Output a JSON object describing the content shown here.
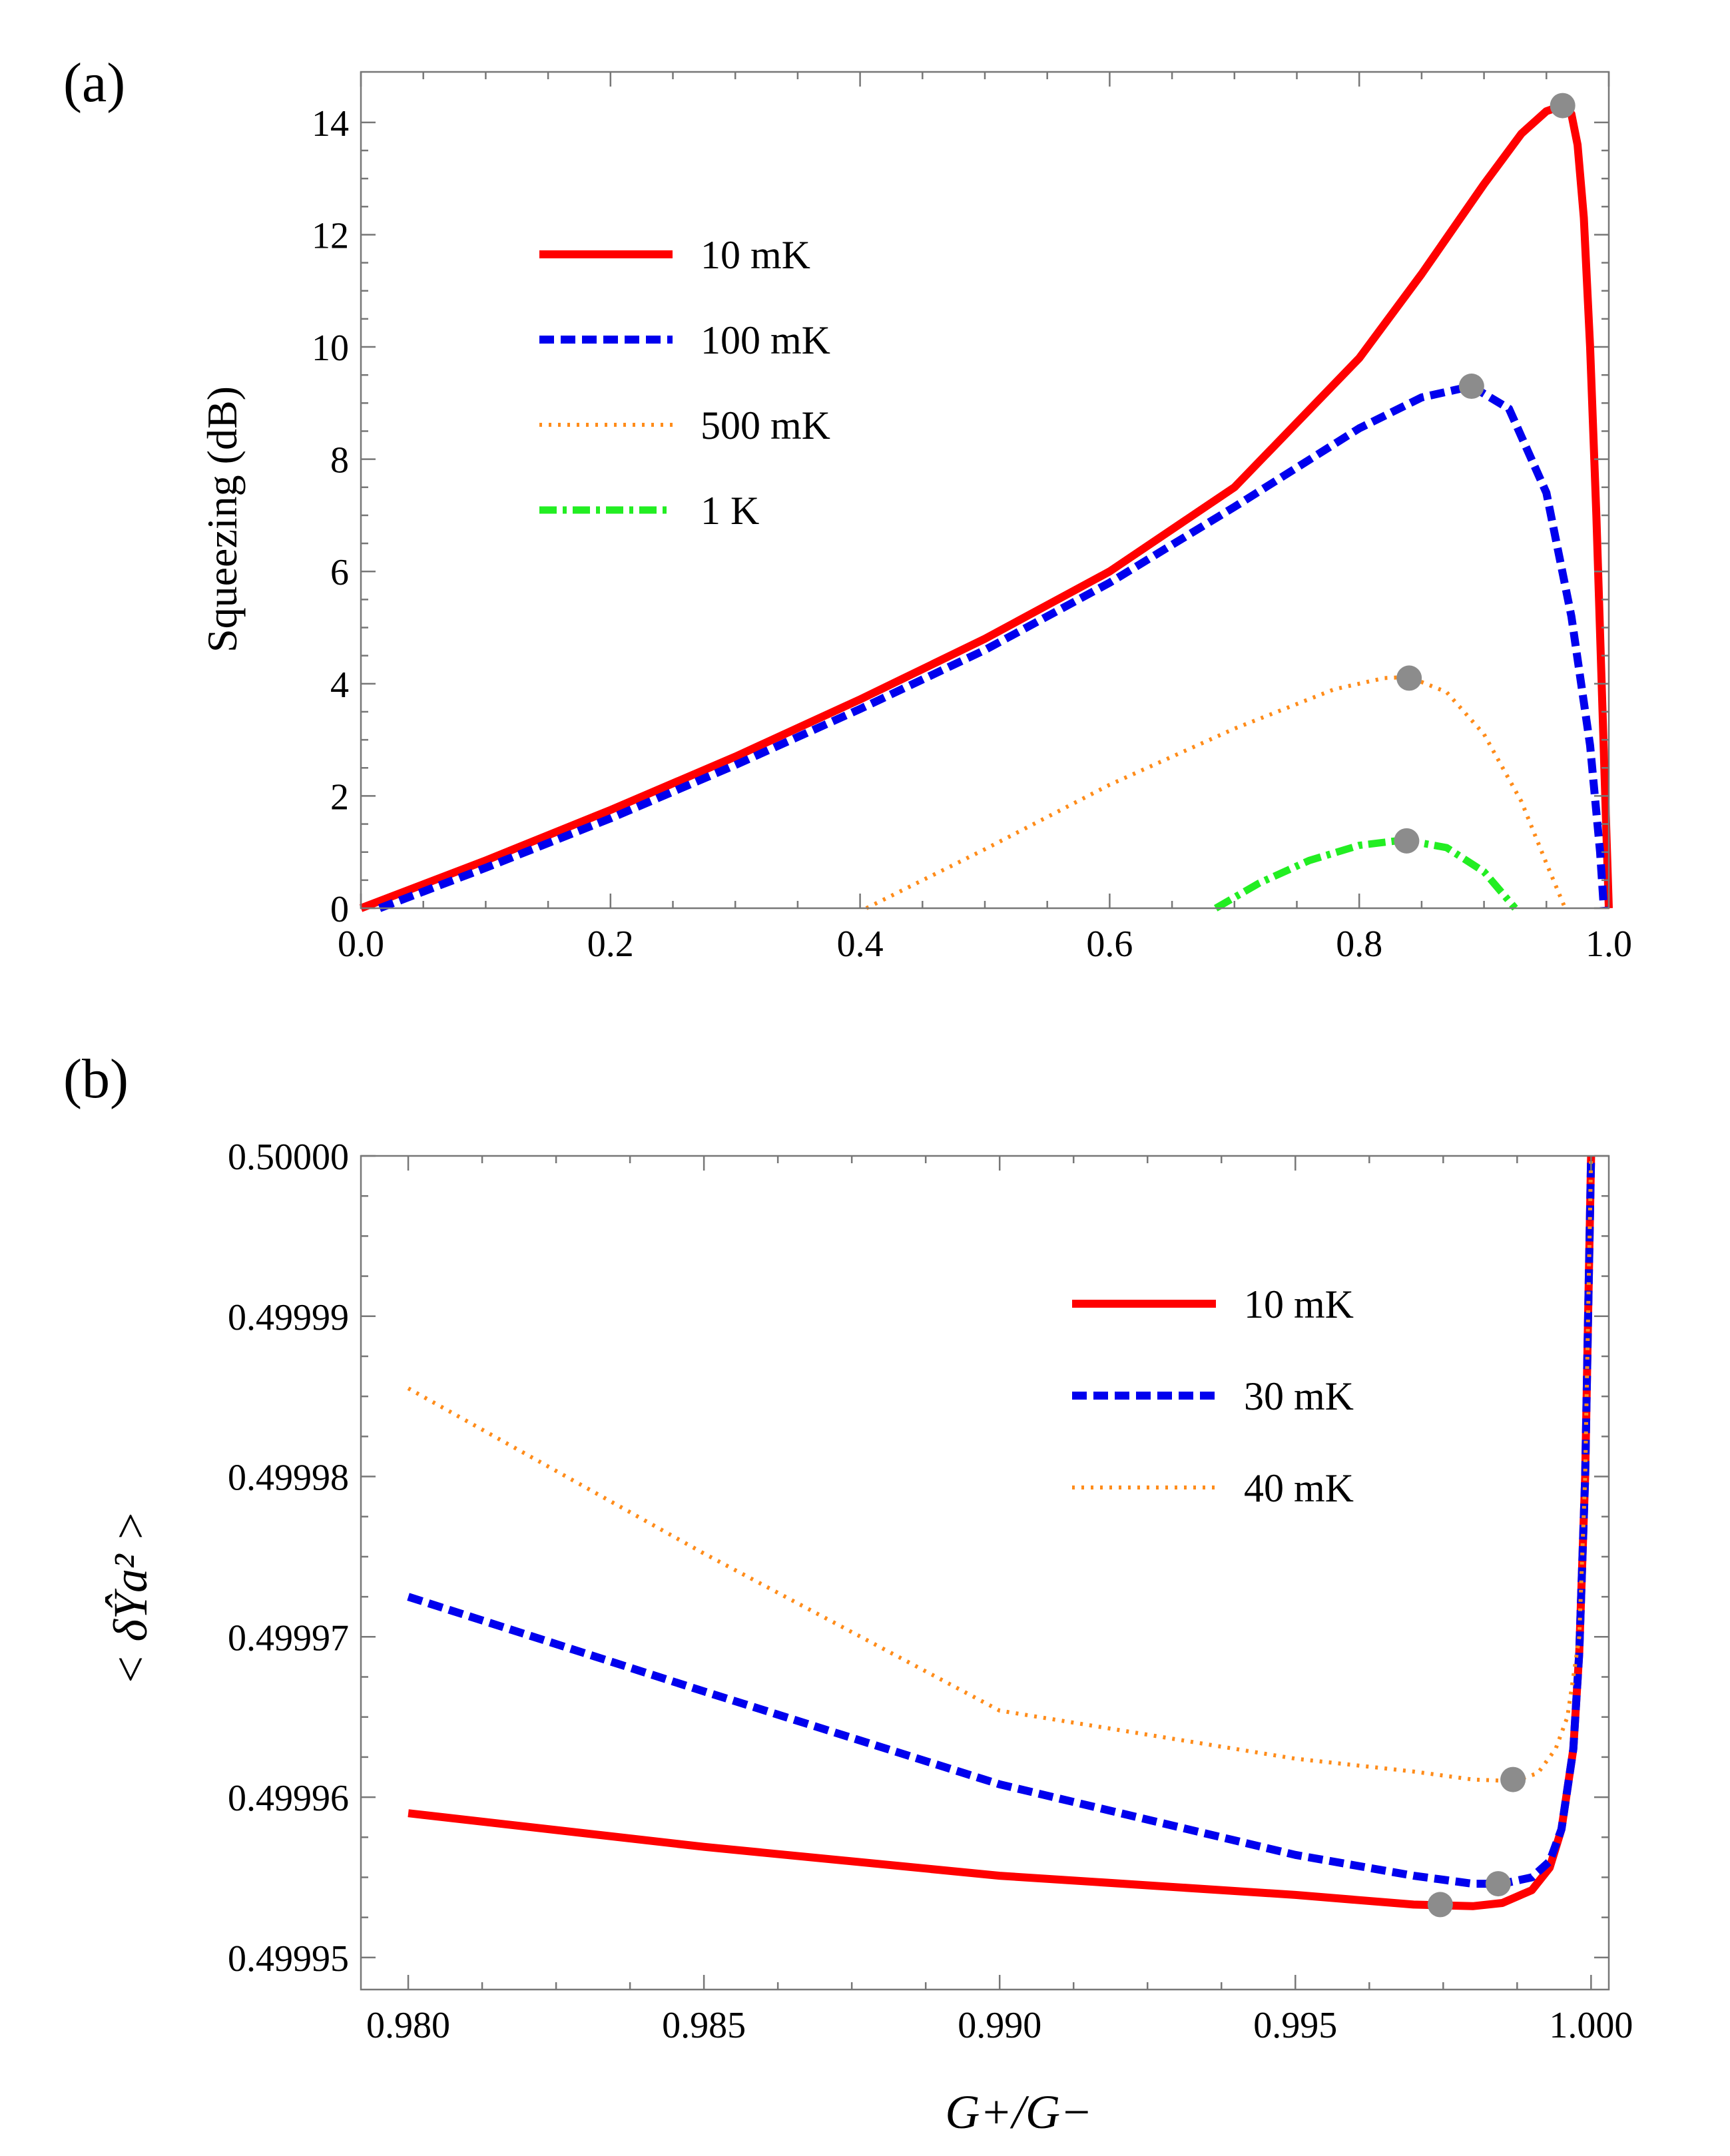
{
  "colors": {
    "red": "#ff0000",
    "blue": "#0000ee",
    "orange": "#ff8c1a",
    "green": "#22ee22",
    "marker": "#8c8c8c"
  },
  "chart_data": [
    {
      "id": "a",
      "panel_label": "(a)",
      "type": "line",
      "title": "",
      "xlabel": "",
      "ylabel": "Squeezing  (dB)",
      "xlim": [
        0.0,
        1.0
      ],
      "ylim": [
        0,
        14.9
      ],
      "xticks": [
        0.0,
        0.2,
        0.4,
        0.6,
        0.8,
        1.0
      ],
      "xtick_labels": [
        "0.0",
        "0.2",
        "0.4",
        "0.6",
        "0.8",
        "1.0"
      ],
      "yticks": [
        0,
        2,
        4,
        6,
        8,
        10,
        12,
        14
      ],
      "ytick_labels": [
        "0",
        "2",
        "4",
        "6",
        "8",
        "10",
        "12",
        "14"
      ],
      "legend_position": "upper-left",
      "series": [
        {
          "name": "10 mK",
          "color": "red",
          "dash": "solid",
          "x": [
            0.0,
            0.1,
            0.2,
            0.3,
            0.4,
            0.5,
            0.6,
            0.7,
            0.8,
            0.85,
            0.9,
            0.93,
            0.95,
            0.963,
            0.97,
            0.975,
            0.98,
            0.985,
            0.99,
            0.995,
            1.0
          ],
          "y": [
            0.0,
            0.85,
            1.75,
            2.7,
            3.72,
            4.8,
            6.0,
            7.5,
            9.8,
            11.3,
            12.9,
            13.8,
            14.2,
            14.3,
            14.15,
            13.6,
            12.3,
            10.0,
            7.0,
            3.5,
            0.0
          ],
          "peak": [
            0.963,
            14.3
          ]
        },
        {
          "name": "100 mK",
          "color": "blue",
          "dash": "dashed",
          "x": [
            0.015,
            0.1,
            0.2,
            0.3,
            0.4,
            0.5,
            0.6,
            0.7,
            0.8,
            0.85,
            0.89,
            0.92,
            0.95,
            0.97,
            0.985,
            0.993,
            0.996
          ],
          "y": [
            0.0,
            0.72,
            1.6,
            2.55,
            3.55,
            4.6,
            5.8,
            7.15,
            8.55,
            9.1,
            9.3,
            8.9,
            7.4,
            5.2,
            2.9,
            1.0,
            0.0
          ],
          "peak": [
            0.89,
            9.3
          ]
        },
        {
          "name": "500 mK",
          "color": "orange",
          "dash": "dotted",
          "x": [
            0.405,
            0.5,
            0.6,
            0.7,
            0.78,
            0.82,
            0.84,
            0.87,
            0.9,
            0.93,
            0.95,
            0.965
          ],
          "y": [
            0.0,
            1.05,
            2.2,
            3.2,
            3.9,
            4.1,
            4.12,
            3.85,
            3.1,
            1.9,
            0.8,
            0.0
          ],
          "peak": [
            0.84,
            4.1
          ]
        },
        {
          "name": "1 K",
          "color": "green",
          "dash": "dashdot",
          "x": [
            0.685,
            0.72,
            0.76,
            0.8,
            0.83,
            0.84,
            0.87,
            0.9,
            0.925
          ],
          "y": [
            0.0,
            0.45,
            0.85,
            1.12,
            1.2,
            1.2,
            1.08,
            0.65,
            0.0
          ],
          "peak": [
            0.838,
            1.2
          ]
        }
      ]
    },
    {
      "id": "b",
      "panel_label": "(b)",
      "type": "line",
      "title": "",
      "xlabel": "G+/G−",
      "ylabel": "< δŶa² >",
      "xlim": [
        0.9792,
        1.0003
      ],
      "ylim": [
        0.499948,
        0.5
      ],
      "xticks": [
        0.98,
        0.985,
        0.99,
        0.995,
        1.0
      ],
      "xtick_labels": [
        "0.980",
        "0.985",
        "0.990",
        "0.995",
        "1.000"
      ],
      "yticks": [
        0.49995,
        0.49996,
        0.49997,
        0.49998,
        0.49999,
        0.5
      ],
      "ytick_labels": [
        "0.49995",
        "0.49996",
        "0.49997",
        "0.49998",
        "0.49999",
        "0.50000"
      ],
      "legend_position": "upper-right",
      "series": [
        {
          "name": "10 mK",
          "color": "red",
          "dash": "solid",
          "x": [
            0.98,
            0.985,
            0.99,
            0.995,
            0.997,
            0.998,
            0.9985,
            0.999,
            0.9993,
            0.9995,
            0.9997,
            0.9998,
            0.9999,
            0.99995,
            1.0
          ],
          "y": [
            0.499959,
            0.4999569,
            0.4999551,
            0.4999539,
            0.4999533,
            0.4999532,
            0.4999534,
            0.4999542,
            0.4999556,
            0.499958,
            0.499963,
            0.499969,
            0.49998,
            0.49999,
            0.5
          ],
          "peak": [
            0.99745,
            0.4999533
          ]
        },
        {
          "name": "30 mK",
          "color": "blue",
          "dash": "dashed",
          "x": [
            0.98,
            0.985,
            0.99,
            0.995,
            0.997,
            0.998,
            0.9985,
            0.999,
            0.9993,
            0.9995,
            0.9997,
            0.9998,
            0.9999,
            0.99995,
            1.0
          ],
          "y": [
            0.4999725,
            0.4999666,
            0.4999608,
            0.4999564,
            0.4999551,
            0.4999546,
            0.4999546,
            0.499955,
            0.499956,
            0.499958,
            0.499963,
            0.499969,
            0.49998,
            0.49999,
            0.5
          ],
          "peak": [
            0.99843,
            0.4999546
          ]
        },
        {
          "name": "40 mK",
          "color": "orange",
          "dash": "dotted",
          "x": [
            0.98,
            0.985,
            0.99,
            0.995,
            0.997,
            0.998,
            0.9987,
            0.9991,
            0.9994,
            0.9996,
            0.9998,
            0.9999,
            0.99995,
            1.0
          ],
          "y": [
            0.4999855,
            0.4999752,
            0.4999654,
            0.4999624,
            0.4999616,
            0.4999611,
            0.499961,
            0.4999615,
            0.499963,
            0.499965,
            0.49997,
            0.49998,
            0.49999,
            0.5
          ],
          "peak": [
            0.99868,
            0.4999611
          ]
        }
      ]
    }
  ]
}
